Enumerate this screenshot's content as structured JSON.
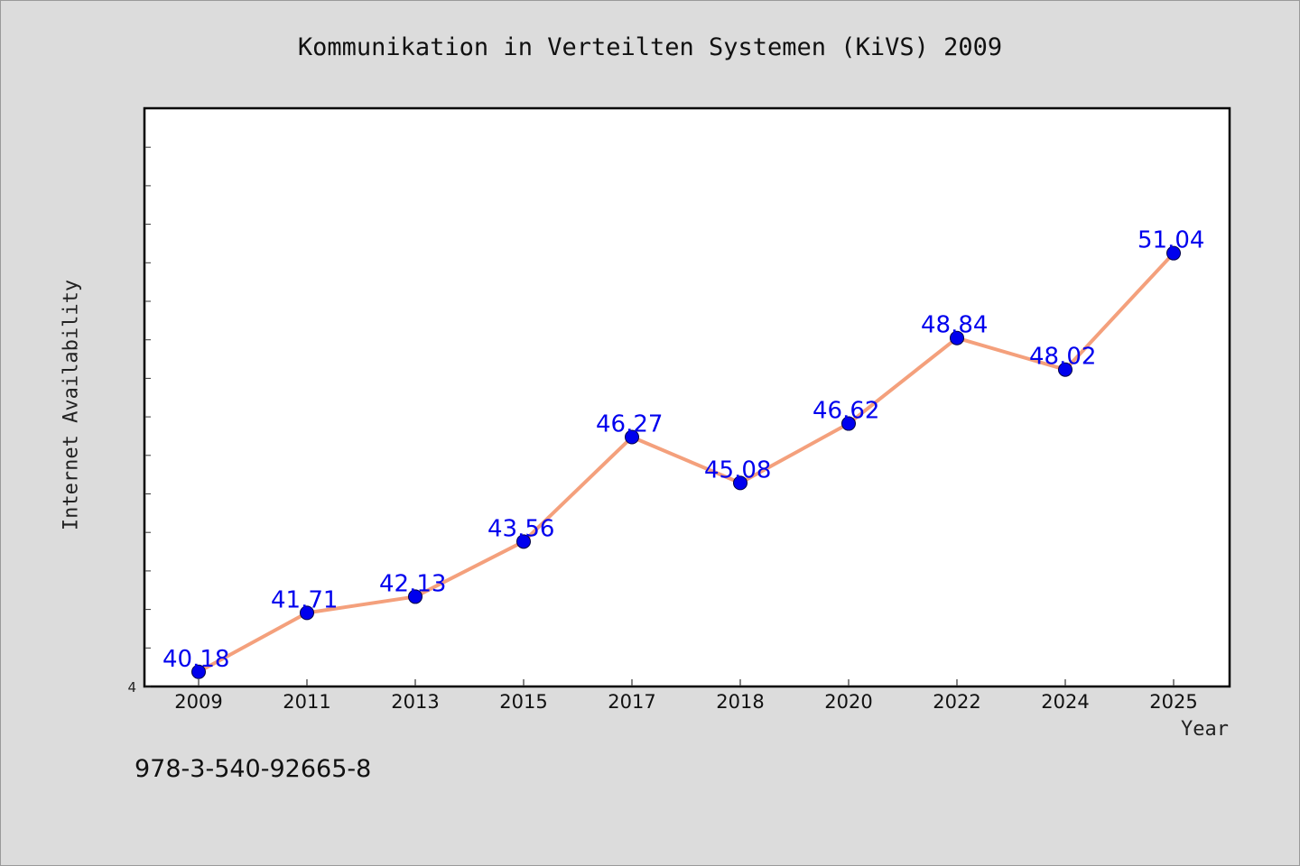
{
  "chart_data": {
    "type": "line",
    "title": "Kommunikation in Verteilten Systemen (KiVS) 2009",
    "xlabel": "Year",
    "ylabel": "Internet Availability",
    "categories": [
      "2009",
      "2011",
      "2013",
      "2015",
      "2017",
      "2018",
      "2020",
      "2022",
      "2024",
      "2025"
    ],
    "series": [
      {
        "values": [
          40.18,
          41.71,
          42.13,
          43.56,
          46.27,
          45.08,
          46.62,
          48.84,
          48.02,
          51.04
        ]
      }
    ],
    "data_labels": [
      "40.18",
      "41.71",
      "42.13",
      "43.56",
      "46.27",
      "45.08",
      "46.62",
      "48.84",
      "48.02",
      "51.04"
    ],
    "y_tick_label": "4",
    "ylim": [
      39.8,
      54.8
    ],
    "grid": false,
    "line_color": "#f4a07c",
    "marker_color": "#0000ee",
    "label_color": "#0000ee"
  },
  "footer": {
    "isbn": "978-3-540-92665-8"
  }
}
